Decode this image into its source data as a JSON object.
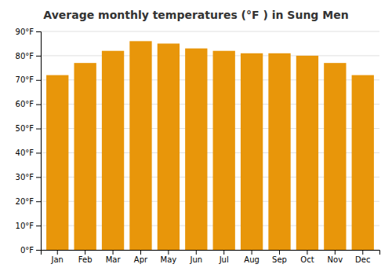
{
  "chart_data": {
    "type": "bar",
    "title": "Average monthly temperatures (°F ) in Sung Men",
    "categories": [
      "Jan",
      "Feb",
      "Mar",
      "Apr",
      "May",
      "Jun",
      "Jul",
      "Aug",
      "Sep",
      "Oct",
      "Nov",
      "Dec"
    ],
    "values": [
      72,
      77,
      82,
      86,
      85,
      83,
      82,
      81,
      81,
      80,
      77,
      72
    ],
    "color": "#E8960A",
    "ylim": [
      0,
      90
    ],
    "yticks": [
      {
        "value": 0,
        "label": "0°F"
      },
      {
        "value": 10,
        "label": "10°F"
      },
      {
        "value": 20,
        "label": "20°F"
      },
      {
        "value": 30,
        "label": "30°F"
      },
      {
        "value": 40,
        "label": "40°F"
      },
      {
        "value": 50,
        "label": "50°F"
      },
      {
        "value": 60,
        "label": "60°F"
      },
      {
        "value": 70,
        "label": "70°F"
      },
      {
        "value": 80,
        "label": "80°F"
      },
      {
        "value": 90,
        "label": "90°F"
      }
    ],
    "grid": true
  }
}
